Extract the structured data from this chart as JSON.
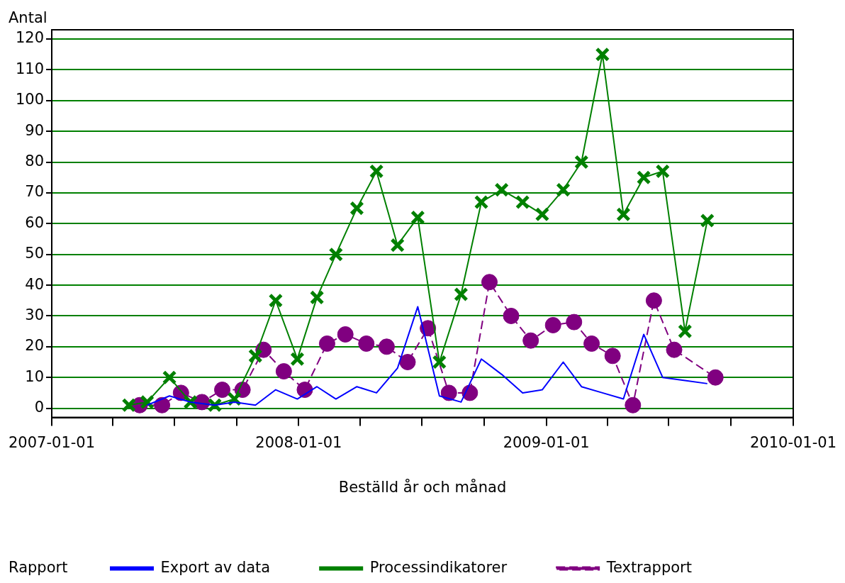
{
  "chart_data": {
    "type": "line",
    "xlabel": "Beställd år och månad",
    "ylabel": "Antal",
    "legend_title": "Rapport",
    "legend": "bottom",
    "grid": "y",
    "xlim": [
      "2007-01-01",
      "2010-01-01"
    ],
    "xticks": [
      {
        "value": "2007-01-01",
        "label": "2007-01-01"
      },
      {
        "value": "2007-04-01",
        "label": null
      },
      {
        "value": "2007-07-01",
        "label": null
      },
      {
        "value": "2007-10-01",
        "label": null
      },
      {
        "value": "2008-01-01",
        "label": "2008-01-01"
      },
      {
        "value": "2008-04-01",
        "label": null
      },
      {
        "value": "2008-07-01",
        "label": null
      },
      {
        "value": "2008-10-01",
        "label": null
      },
      {
        "value": "2009-01-01",
        "label": "2009-01-01"
      },
      {
        "value": "2009-04-01",
        "label": null
      },
      {
        "value": "2009-07-01",
        "label": null
      },
      {
        "value": "2009-10-01",
        "label": null
      },
      {
        "value": "2010-01-01",
        "label": "2010-01-01"
      }
    ],
    "ylim": [
      -3,
      123
    ],
    "yticks": [
      0,
      10,
      20,
      30,
      40,
      50,
      60,
      70,
      80,
      90,
      100,
      110,
      120
    ],
    "series": [
      {
        "name": "Export av data",
        "color": "#0000ff",
        "marker": "none",
        "line_style": "solid",
        "x": [
          "2007-05-22",
          "2007-06-24",
          "2007-07-25",
          "2007-08-30",
          "2007-09-28",
          "2007-10-29",
          "2007-11-28",
          "2007-12-30",
          "2008-01-28",
          "2008-02-25",
          "2008-03-27",
          "2008-04-25",
          "2008-05-26",
          "2008-06-25",
          "2008-07-27",
          "2008-08-28",
          "2008-09-27",
          "2008-10-27",
          "2008-11-27",
          "2008-12-26",
          "2009-01-26",
          "2009-02-22",
          "2009-03-25",
          "2009-04-25",
          "2009-05-25",
          "2009-06-22",
          "2009-07-25",
          "2009-08-27"
        ],
        "values": [
          1,
          4,
          2,
          1,
          2,
          1,
          6,
          3,
          7,
          3,
          7,
          5,
          13,
          33,
          4,
          2,
          16,
          11,
          5,
          6,
          15,
          7,
          5,
          3,
          24,
          10,
          9,
          8
        ]
      },
      {
        "name": "Processindikatorer",
        "color": "#008000",
        "marker": "cross",
        "line_style": "solid",
        "x": [
          "2007-04-25",
          "2007-05-22",
          "2007-06-24",
          "2007-07-25",
          "2007-08-30",
          "2007-09-28",
          "2007-10-29",
          "2007-11-28",
          "2007-12-30",
          "2008-01-28",
          "2008-02-25",
          "2008-03-27",
          "2008-04-25",
          "2008-05-26",
          "2008-06-25",
          "2008-07-27",
          "2008-08-28",
          "2008-09-27",
          "2008-10-27",
          "2008-11-27",
          "2008-12-26",
          "2009-01-26",
          "2009-02-22",
          "2009-03-25",
          "2009-04-25",
          "2009-05-25",
          "2009-06-22",
          "2009-07-25",
          "2009-08-27"
        ],
        "values": [
          1,
          2,
          10,
          2,
          1,
          3,
          17,
          35,
          16,
          36,
          50,
          65,
          77,
          53,
          62,
          15,
          37,
          67,
          71,
          67,
          63,
          71,
          80,
          115,
          63,
          75,
          77,
          25,
          61
        ]
      },
      {
        "name": "Textrapport",
        "color": "#800080",
        "marker": "circle",
        "line_style": "dashed",
        "x": [
          "2007-05-11",
          "2007-06-13",
          "2007-07-11",
          "2007-08-11",
          "2007-09-10",
          "2007-10-10",
          "2007-11-10",
          "2007-12-10",
          "2008-01-10",
          "2008-02-12",
          "2008-03-10",
          "2008-04-10",
          "2008-05-10",
          "2008-06-10",
          "2008-07-10",
          "2008-08-10",
          "2008-09-10",
          "2008-10-09",
          "2008-11-10",
          "2008-12-09",
          "2009-01-11",
          "2009-02-11",
          "2009-03-09",
          "2009-04-09",
          "2009-05-09",
          "2009-06-09",
          "2009-07-09",
          "2009-09-08"
        ],
        "values": [
          1,
          1,
          5,
          2,
          6,
          6,
          19,
          12,
          6,
          21,
          24,
          21,
          20,
          15,
          26,
          5,
          5,
          41,
          30,
          22,
          27,
          28,
          21,
          17,
          1,
          35,
          19,
          10
        ]
      }
    ]
  }
}
